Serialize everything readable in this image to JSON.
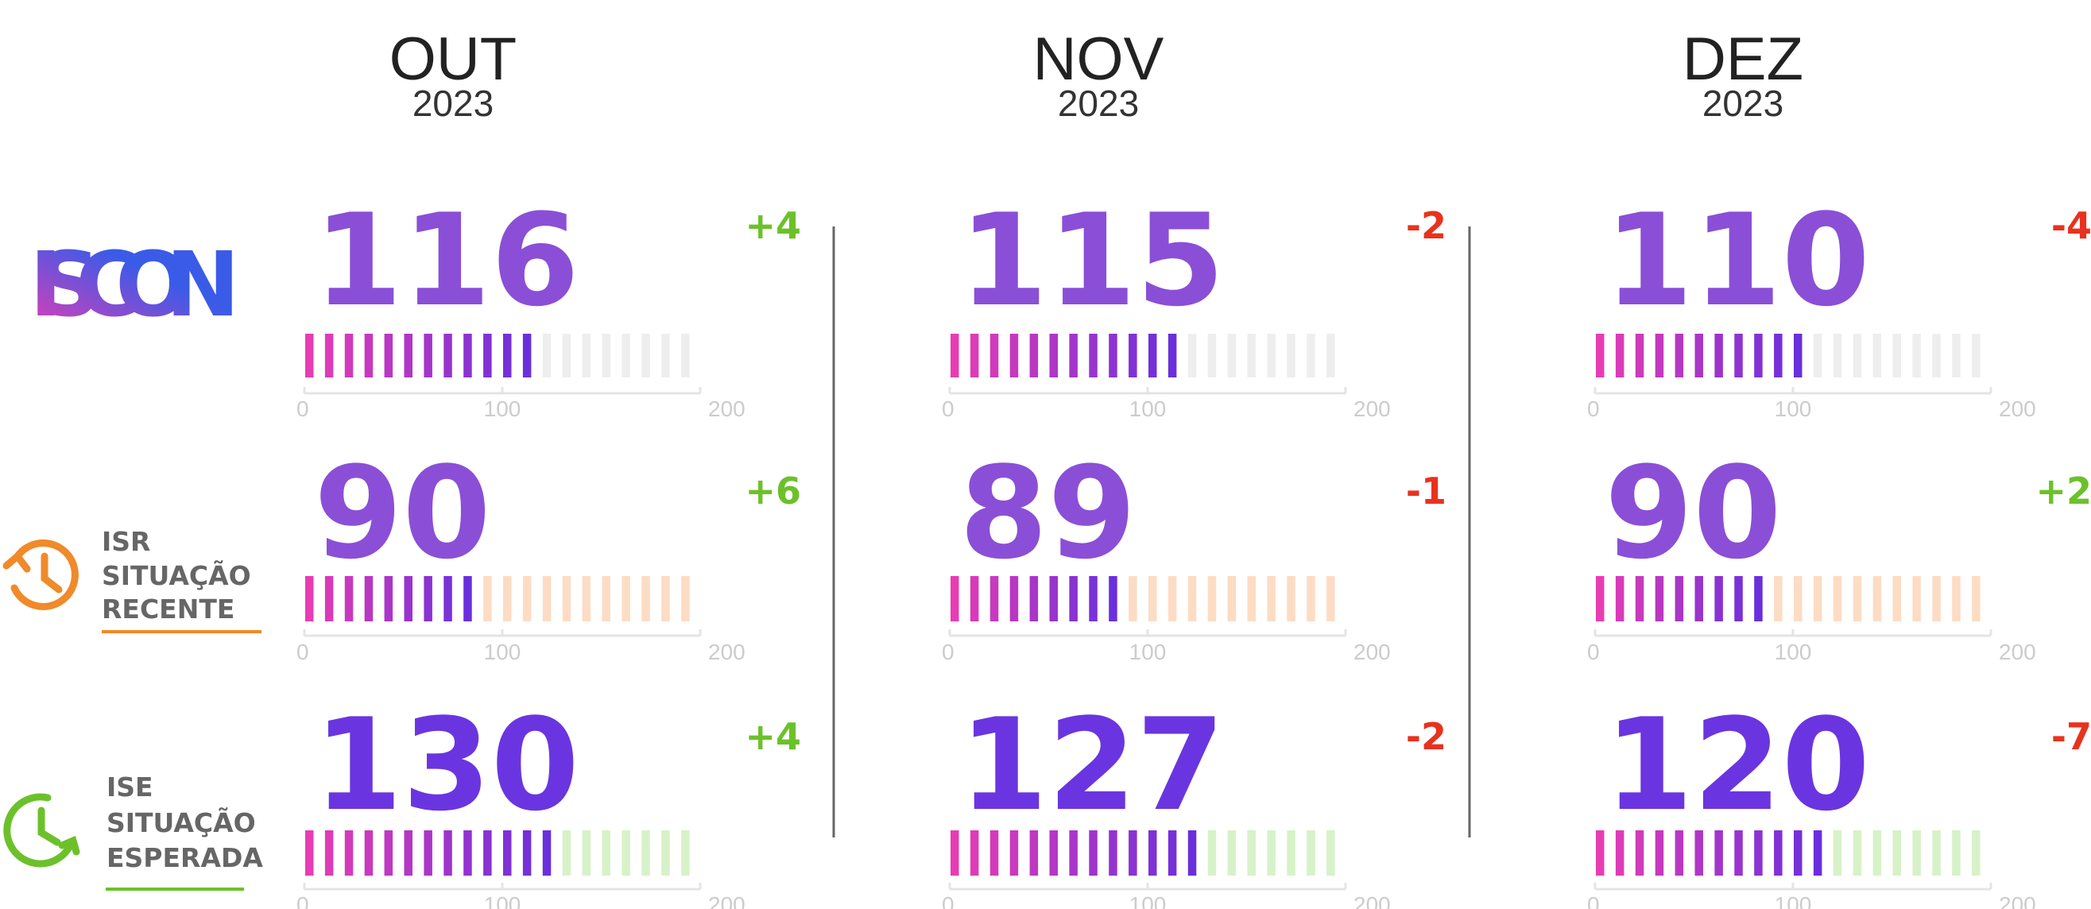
{
  "months": [
    {
      "month": "OUT",
      "year": "2023"
    },
    {
      "month": "NOV",
      "year": "2023"
    },
    {
      "month": "DEZ",
      "year": "2023"
    }
  ],
  "axis": {
    "lim": [
      0,
      200
    ],
    "ticks": [
      0,
      100,
      200
    ],
    "segments": 20
  },
  "rows": [
    {
      "logo": "ISCON",
      "values": [
        116,
        115,
        110
      ],
      "changes": [
        "+4",
        "-2",
        "-4"
      ]
    },
    {
      "code": "ISR",
      "lines": [
        "SITUAÇÃO",
        "RECENTE"
      ],
      "values": [
        90,
        89,
        90
      ],
      "changes": [
        "+6",
        "-1",
        "+2"
      ]
    },
    {
      "code": "ISE",
      "lines": [
        "SITUAÇÃO",
        "ESPERADA"
      ],
      "values": [
        130,
        127,
        120
      ],
      "changes": [
        "+4",
        "-2",
        "-7"
      ]
    }
  ]
}
